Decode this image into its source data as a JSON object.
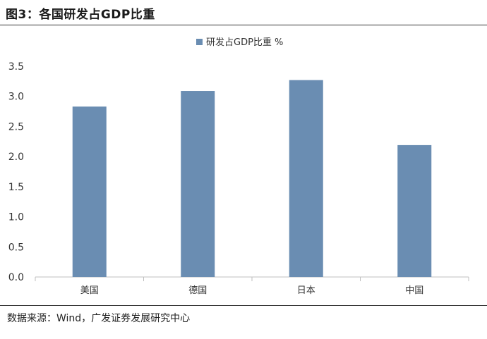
{
  "header": {
    "title": "图3：各国研发占GDP比重"
  },
  "footer": {
    "source": "数据来源：Wind，广发证券发展研究中心"
  },
  "colors": {
    "bar": "#6a8db2",
    "axis": "#bfbfbf",
    "text": "#333333"
  },
  "chart_data": {
    "type": "bar",
    "title": "",
    "categories": [
      "美国",
      "德国",
      "日本",
      "中国"
    ],
    "series": [
      {
        "name": "研发占GDP比重 %",
        "values": [
          2.83,
          3.09,
          3.27,
          2.19
        ]
      }
    ],
    "ylim": [
      0,
      3.5
    ],
    "yticks": [
      "0.0",
      "0.5",
      "1.0",
      "1.5",
      "2.0",
      "2.5",
      "3.0",
      "3.5"
    ],
    "grid": false,
    "legend": "top-center"
  }
}
